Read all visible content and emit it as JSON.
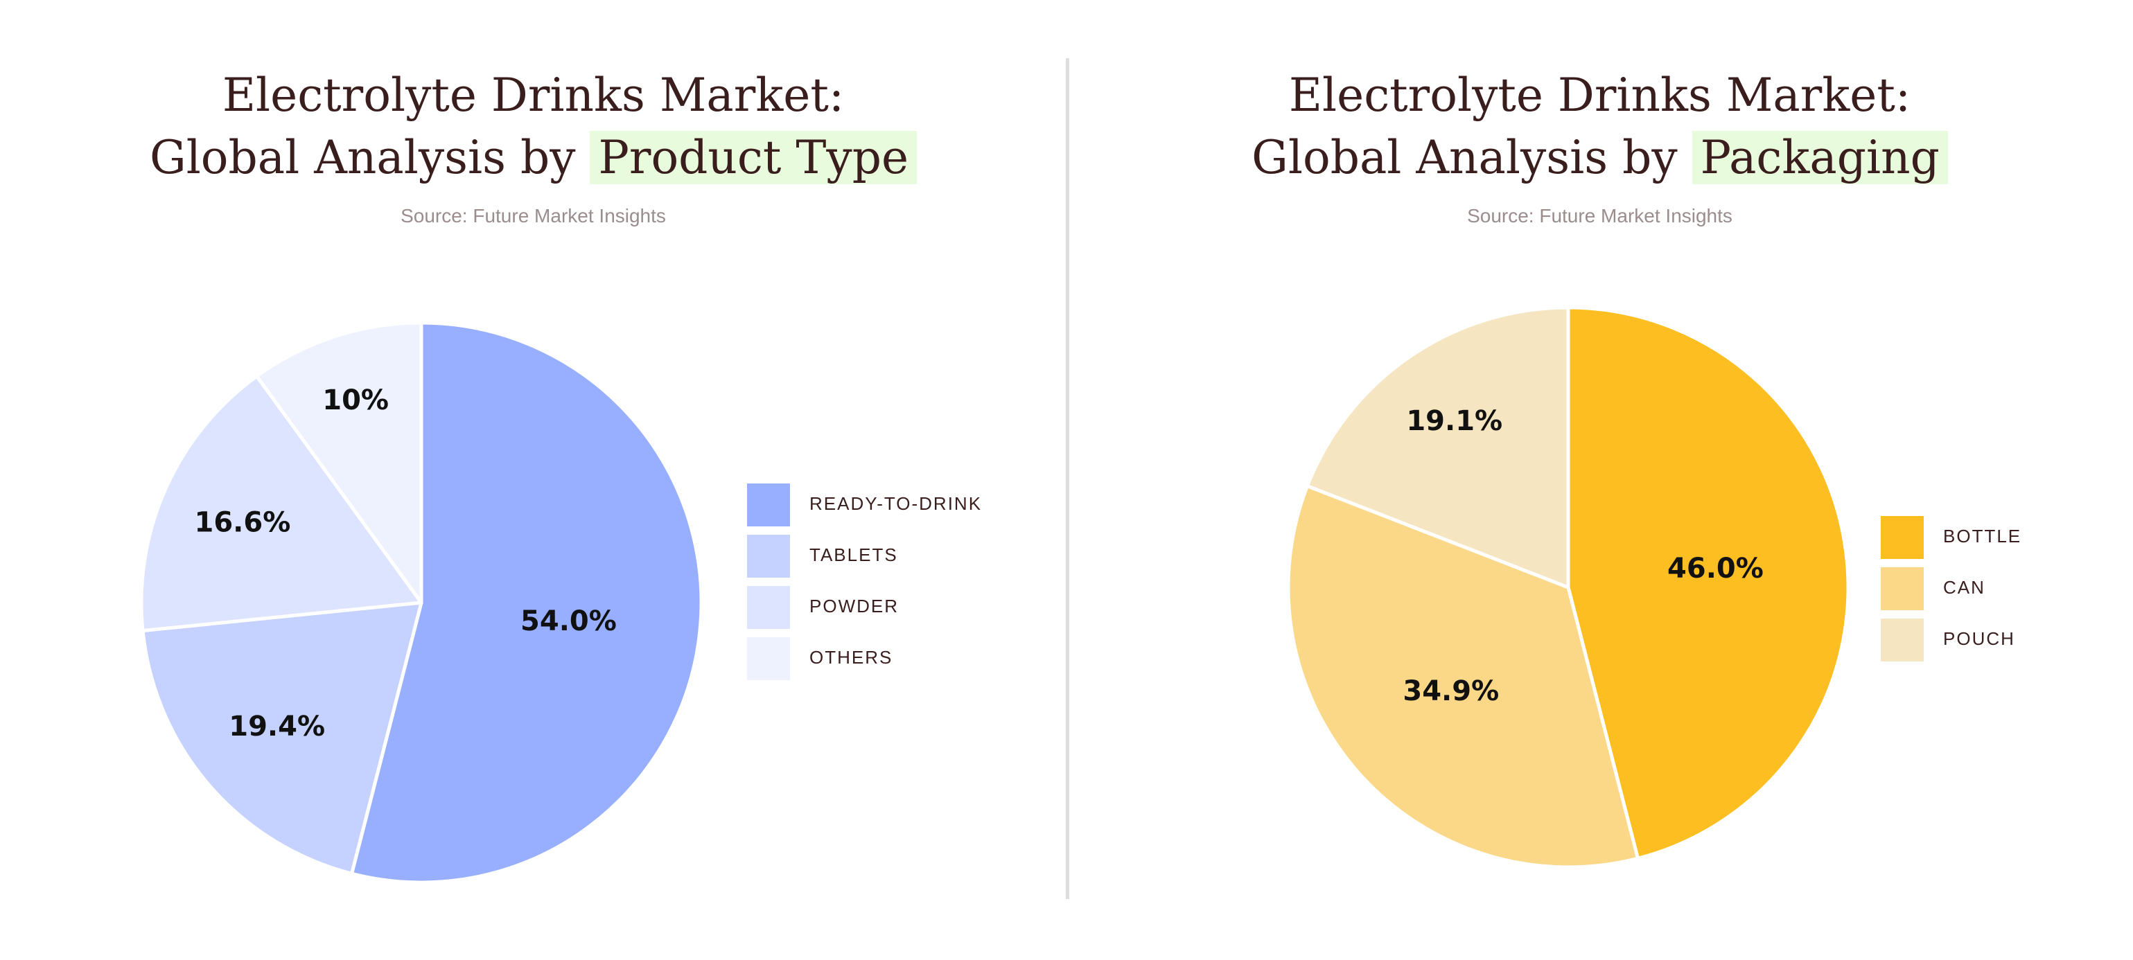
{
  "chart_data": [
    {
      "type": "pie",
      "title_line1": "Electrolyte Drinks Market:",
      "title_prefix": "Global Analysis by ",
      "title_highlight": "Product Type",
      "source": "Source: Future Market Insights",
      "highlight_color": "#e8fbdc",
      "slices": [
        {
          "label": "READY-TO-DRINK",
          "value": 54.0,
          "display": "54.0%",
          "color": "#98afff"
        },
        {
          "label": "TABLETS",
          "value": 19.4,
          "display": "19.4%",
          "color": "#c5d2ff"
        },
        {
          "label": "POWDER",
          "value": 16.6,
          "display": "16.6%",
          "color": "#dce4ff"
        },
        {
          "label": "OTHERS",
          "value": 10.0,
          "display": "10%",
          "color": "#eef2ff"
        }
      ],
      "legend_position": "right"
    },
    {
      "type": "pie",
      "title_line1": "Electrolyte Drinks Market:",
      "title_prefix": "Global Analysis by ",
      "title_highlight": "Packaging",
      "source": "Source: Future Market Insights",
      "highlight_color": "#e8fbdc",
      "slices": [
        {
          "label": "BOTTLE",
          "value": 46.0,
          "display": "46.0%",
          "color": "#fdbe21"
        },
        {
          "label": "CAN",
          "value": 34.9,
          "display": "34.9%",
          "color": "#fbd888"
        },
        {
          "label": "POUCH",
          "value": 19.1,
          "display": "19.1%",
          "color": "#f6e5c1"
        }
      ],
      "legend_position": "right"
    }
  ]
}
